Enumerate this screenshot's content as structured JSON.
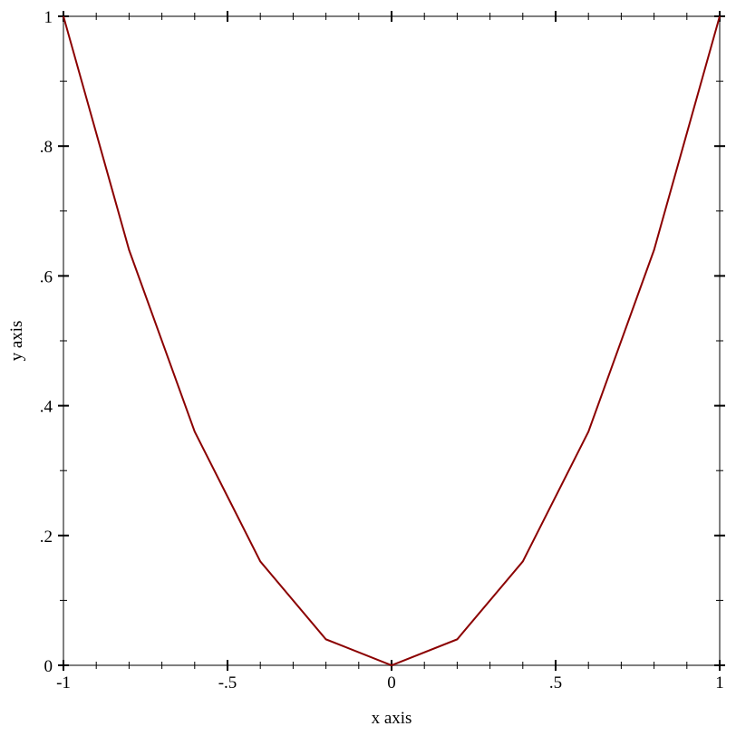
{
  "chart_data": {
    "type": "line",
    "title": "",
    "xlabel": "x axis",
    "ylabel": "y axis",
    "xlim": [
      -1,
      1
    ],
    "ylim": [
      0,
      1
    ],
    "grid": false,
    "x_ticks": [
      {
        "v": -1,
        "label": "-1"
      },
      {
        "v": -0.5,
        "label": "-.5"
      },
      {
        "v": 0,
        "label": "0"
      },
      {
        "v": 0.5,
        "label": ".5"
      },
      {
        "v": 1,
        "label": "1"
      }
    ],
    "y_ticks": [
      {
        "v": 0,
        "label": "0"
      },
      {
        "v": 0.2,
        "label": ".2"
      },
      {
        "v": 0.4,
        "label": ".4"
      },
      {
        "v": 0.6,
        "label": ".6"
      },
      {
        "v": 0.8,
        "label": ".8"
      },
      {
        "v": 1,
        "label": "1"
      }
    ],
    "series": [
      {
        "color": "#8b0000",
        "x": [
          -1,
          -0.8,
          -0.6,
          -0.4,
          -0.2,
          0,
          0.2,
          0.4,
          0.6,
          0.8,
          1
        ],
        "y": [
          1,
          0.64,
          0.36,
          0.16,
          0.04,
          0,
          0.04,
          0.16,
          0.36,
          0.64,
          1
        ]
      }
    ]
  }
}
